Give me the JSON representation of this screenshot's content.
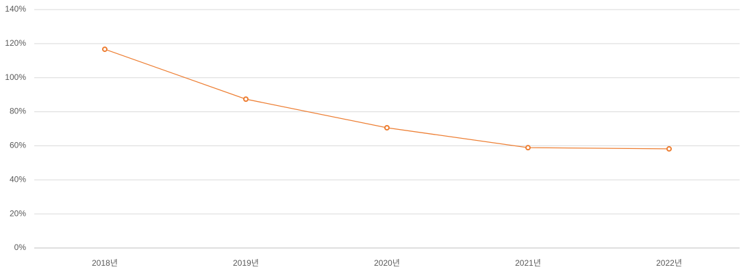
{
  "chart_data": {
    "type": "line",
    "categories": [
      "2018년",
      "2019년",
      "2020년",
      "2021년",
      "2022년"
    ],
    "series": [
      {
        "color": "#ed7d31",
        "values": [
          116.7,
          87.4,
          70.6,
          58.9,
          58.2
        ]
      }
    ],
    "ylim": [
      0,
      140
    ],
    "yticks": [
      {
        "value": 0,
        "label": "0%"
      },
      {
        "value": 20,
        "label": "20%"
      },
      {
        "value": 40,
        "label": "40%"
      },
      {
        "value": 60,
        "label": "60%"
      },
      {
        "value": 80,
        "label": "80%"
      },
      {
        "value": 100,
        "label": "100%"
      },
      {
        "value": 120,
        "label": "120%"
      },
      {
        "value": 140,
        "label": "140%"
      }
    ],
    "grid": true
  }
}
